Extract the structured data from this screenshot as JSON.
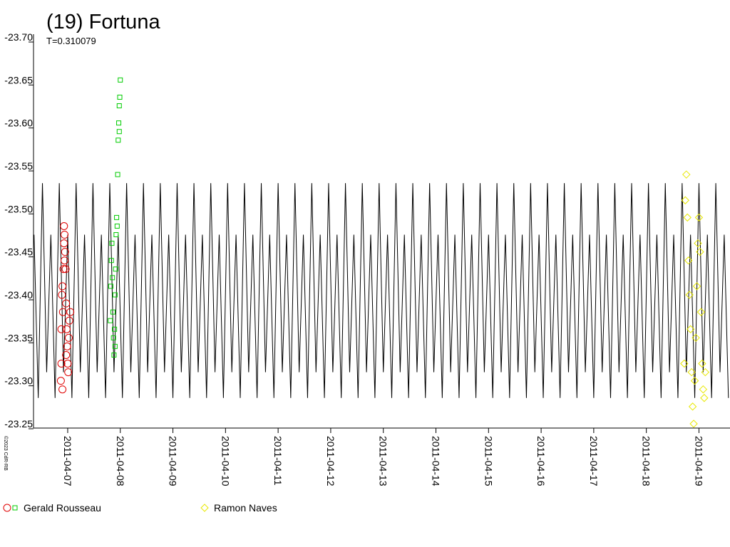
{
  "chart_data": {
    "type": "line",
    "title": "(19) Fortuna",
    "subtitle": "T=0.310079",
    "credit": "©2023 CdR-RB",
    "xlim": [
      6.35,
      19.59
    ],
    "xticks": [
      {
        "value": 7,
        "label": "2011-04-07"
      },
      {
        "value": 8,
        "label": "2011-04-08"
      },
      {
        "value": 9,
        "label": "2011-04-09"
      },
      {
        "value": 10,
        "label": "2011-04-10"
      },
      {
        "value": 11,
        "label": "2011-04-11"
      },
      {
        "value": 12,
        "label": "2011-04-12"
      },
      {
        "value": 13,
        "label": "2011-04-13"
      },
      {
        "value": 14,
        "label": "2011-04-14"
      },
      {
        "value": 15,
        "label": "2011-04-15"
      },
      {
        "value": 16,
        "label": "2011-04-16"
      },
      {
        "value": 17,
        "label": "2011-04-17"
      },
      {
        "value": 18,
        "label": "2011-04-18"
      },
      {
        "value": 19,
        "label": "2011-04-19"
      }
    ],
    "ylim": [
      -23.245,
      -23.7
    ],
    "yticks": [
      {
        "value": -23.7,
        "label": "-23.70"
      },
      -23.65,
      {
        "value": -23.6,
        "label": "-23.60"
      },
      -23.55,
      {
        "value": -23.5,
        "label": "-23.50"
      },
      -23.45,
      {
        "value": -23.4,
        "label": "-23.40"
      },
      -23.35,
      {
        "value": -23.3,
        "label": "-23.30"
      },
      -23.25
    ],
    "series": [
      {
        "kind": "line",
        "color": "#000000",
        "x": [
          6.36,
          6.44,
          6.52,
          6.6,
          6.68,
          6.76,
          6.84,
          6.92,
          7,
          7.08,
          7.16,
          7.24,
          7.32,
          7.4,
          7.48,
          7.56,
          7.64,
          7.72,
          7.8,
          7.88,
          7.96,
          8.04,
          8.12,
          8.2,
          8.28,
          8.36,
          8.44,
          8.52,
          8.6,
          8.68,
          8.76,
          8.84,
          8.92,
          9,
          9.08,
          9.16,
          9.24,
          9.32,
          9.4,
          9.48,
          9.56,
          9.64,
          9.72,
          9.8,
          9.88,
          9.96,
          10.04,
          10.12,
          10.2,
          10.28,
          10.36,
          10.44,
          10.52,
          10.6,
          10.68,
          10.76,
          10.84,
          10.92,
          11,
          11.08,
          11.16,
          11.24,
          11.32,
          11.4,
          11.48,
          11.56,
          11.64,
          11.72,
          11.8,
          11.88,
          11.96,
          12.04,
          12.12,
          12.2,
          12.28,
          12.36,
          12.44,
          12.52,
          12.6,
          12.68,
          12.76,
          12.84,
          12.92,
          13,
          13.08,
          13.16,
          13.24,
          13.32,
          13.4,
          13.48,
          13.56,
          13.64,
          13.72,
          13.8,
          13.88,
          13.96,
          14.04,
          14.12,
          14.2,
          14.28,
          14.36,
          14.44,
          14.52,
          14.6,
          14.68,
          14.76,
          14.84,
          14.92,
          15,
          15.08,
          15.16,
          15.24,
          15.32,
          15.4,
          15.48,
          15.56,
          15.64,
          15.72,
          15.8,
          15.88,
          15.96,
          16.04,
          16.12,
          16.2,
          16.28,
          16.36,
          16.44,
          16.52,
          16.6,
          16.68,
          16.76,
          16.84,
          16.92,
          17,
          17.08,
          17.16,
          17.24,
          17.32,
          17.4,
          17.48,
          17.56,
          17.64,
          17.72,
          17.8,
          17.88,
          17.96,
          18.04,
          18.12,
          18.2,
          18.28,
          18.36,
          18.44,
          18.52,
          18.6,
          18.68,
          18.76,
          18.84,
          18.92,
          19,
          19.08,
          19.16,
          19.24,
          19.32,
          19.4,
          19.48,
          19.56
        ],
        "values": [
          -23.47,
          -23.28,
          -23.53,
          -23.31,
          -23.47,
          -23.28,
          -23.53,
          -23.31,
          -23.47,
          -23.28,
          -23.53,
          -23.31,
          -23.47,
          -23.28,
          -23.53,
          -23.31,
          -23.47,
          -23.28,
          -23.53,
          -23.31,
          -23.47,
          -23.28,
          -23.53,
          -23.31,
          -23.47,
          -23.28,
          -23.53,
          -23.31,
          -23.47,
          -23.28,
          -23.53,
          -23.31,
          -23.47,
          -23.28,
          -23.53,
          -23.31,
          -23.47,
          -23.28,
          -23.53,
          -23.31,
          -23.47,
          -23.28,
          -23.53,
          -23.31,
          -23.47,
          -23.28,
          -23.53,
          -23.31,
          -23.47,
          -23.28,
          -23.53,
          -23.31,
          -23.47,
          -23.28,
          -23.53,
          -23.31,
          -23.47,
          -23.28,
          -23.53,
          -23.31,
          -23.47,
          -23.28,
          -23.53,
          -23.31,
          -23.47,
          -23.28,
          -23.53,
          -23.31,
          -23.47,
          -23.28,
          -23.53,
          -23.31,
          -23.47,
          -23.28,
          -23.53,
          -23.31,
          -23.47,
          -23.28,
          -23.53,
          -23.31,
          -23.47,
          -23.28,
          -23.53,
          -23.31,
          -23.47,
          -23.28,
          -23.53,
          -23.31,
          -23.47,
          -23.28,
          -23.53,
          -23.31,
          -23.47,
          -23.28,
          -23.53,
          -23.31,
          -23.47,
          -23.28,
          -23.53,
          -23.31,
          -23.47,
          -23.28,
          -23.53,
          -23.31,
          -23.47,
          -23.28,
          -23.53,
          -23.31,
          -23.47,
          -23.28,
          -23.53,
          -23.31,
          -23.47,
          -23.28,
          -23.53,
          -23.31,
          -23.47,
          -23.28,
          -23.53,
          -23.31,
          -23.47,
          -23.28,
          -23.53,
          -23.31,
          -23.47,
          -23.28,
          -23.53,
          -23.31,
          -23.47,
          -23.28,
          -23.53,
          -23.31,
          -23.47,
          -23.28,
          -23.53,
          -23.31,
          -23.47,
          -23.28,
          -23.53,
          -23.31,
          -23.47,
          -23.28,
          -23.53,
          -23.31,
          -23.47,
          -23.28,
          -23.53,
          -23.31,
          -23.47,
          -23.28,
          -23.53,
          -23.31,
          -23.47,
          -23.28,
          -23.53,
          -23.31,
          -23.47,
          -23.28,
          -23.53,
          -23.31,
          -23.47,
          -23.28,
          -23.53,
          -23.31,
          -23.47,
          -23.28
        ]
      },
      {
        "kind": "scatter",
        "name": "Gerald Rousseau",
        "marker": "circle",
        "color": "#e00000",
        "x": [
          6.87,
          6.88,
          6.88,
          6.89,
          6.9,
          6.9,
          6.91,
          6.92,
          6.93,
          6.93,
          6.94,
          6.95,
          6.96,
          6.97,
          6.98,
          6.99,
          7,
          7.01,
          7.02,
          7.03,
          7.05,
          6.94,
          6.97
        ],
        "values": [
          -23.3,
          -23.32,
          -23.36,
          -23.4,
          -23.41,
          -23.29,
          -23.38,
          -23.43,
          -23.46,
          -23.48,
          -23.47,
          -23.45,
          -23.43,
          -23.39,
          -23.36,
          -23.34,
          -23.32,
          -23.31,
          -23.35,
          -23.37,
          -23.38,
          -23.44,
          -23.33
        ]
      },
      {
        "kind": "scatter",
        "marker": "square",
        "color": "#00cc00",
        "x": [
          7.81,
          7.82,
          7.83,
          7.84,
          7.85,
          7.86,
          7.87,
          7.88,
          7.89,
          7.9,
          7.91,
          7.92,
          7.93,
          7.95,
          7.96,
          7.97,
          7.98,
          7.99,
          8,
          7.98,
          7.94,
          7.9
        ],
        "values": [
          -23.37,
          -23.41,
          -23.44,
          -23.46,
          -23.42,
          -23.38,
          -23.35,
          -23.33,
          -23.36,
          -23.4,
          -23.43,
          -23.47,
          -23.49,
          -23.54,
          -23.58,
          -23.6,
          -23.62,
          -23.63,
          -23.65,
          -23.59,
          -23.48,
          -23.34
        ]
      },
      {
        "kind": "scatter",
        "name": "Ramon Naves",
        "marker": "diamond",
        "color": "#e8e800",
        "x": [
          18.72,
          18.74,
          18.76,
          18.78,
          18.8,
          18.82,
          18.84,
          18.86,
          18.88,
          18.9,
          18.92,
          18.94,
          18.96,
          18.98,
          19,
          19.02,
          19.04,
          19.06,
          19.08,
          19.1,
          19.12
        ],
        "values": [
          -23.32,
          -23.51,
          -23.54,
          -23.49,
          -23.44,
          -23.4,
          -23.36,
          -23.31,
          -23.27,
          -23.25,
          -23.3,
          -23.35,
          -23.41,
          -23.46,
          -23.49,
          -23.45,
          -23.38,
          -23.32,
          -23.29,
          -23.28,
          -23.31
        ]
      }
    ]
  }
}
